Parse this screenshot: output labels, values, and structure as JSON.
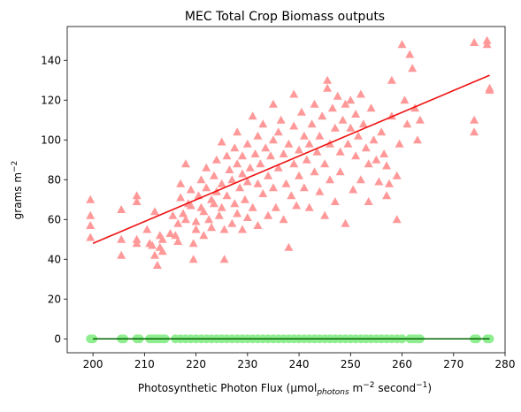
{
  "chart_data": {
    "type": "scatter",
    "title": "MEC Total Crop Biomass outputs",
    "xlabel_parts": {
      "prefix": "Photosynthetic Photon Flux (μmol",
      "sub": "photons",
      "mid": " m",
      "sup1": "−2",
      "mid2": " second",
      "sup2": "−1",
      "suffix": ")"
    },
    "ylabel_parts": {
      "prefix": "grams m",
      "sup": "−2"
    },
    "xlim": [
      195,
      280
    ],
    "ylim": [
      -7,
      157
    ],
    "xticks": [
      200,
      210,
      220,
      230,
      240,
      250,
      260,
      270,
      280
    ],
    "yticks": [
      0,
      20,
      40,
      60,
      80,
      100,
      120,
      140
    ],
    "grid": false,
    "colors": {
      "biomass_points": "#ff9999",
      "zero_points": "#90ee90",
      "biomass_fit": "#ee1111",
      "zero_fit": "#006400"
    },
    "series": [
      {
        "marker": "triangle",
        "points": [
          [
            199.5,
            70
          ],
          [
            199.5,
            62
          ],
          [
            199.5,
            57
          ],
          [
            199.5,
            51
          ],
          [
            205.5,
            65
          ],
          [
            205.5,
            50
          ],
          [
            205.5,
            42
          ],
          [
            208.5,
            72
          ],
          [
            208.5,
            69
          ],
          [
            208.5,
            50
          ],
          [
            208.5,
            48
          ],
          [
            210.5,
            55
          ],
          [
            211,
            48
          ],
          [
            211.5,
            47
          ],
          [
            212,
            64
          ],
          [
            212,
            42
          ],
          [
            212.5,
            37
          ],
          [
            213,
            52
          ],
          [
            213,
            46
          ],
          [
            213.5,
            44
          ],
          [
            213.5,
            50
          ],
          [
            215,
            53
          ],
          [
            215.5,
            62
          ],
          [
            216,
            52
          ],
          [
            216.5,
            58
          ],
          [
            216.5,
            49
          ],
          [
            217,
            71
          ],
          [
            217,
            78
          ],
          [
            217.5,
            63
          ],
          [
            218,
            60
          ],
          [
            218,
            88
          ],
          [
            218.5,
            68
          ],
          [
            219,
            75
          ],
          [
            219,
            67
          ],
          [
            219.5,
            48
          ],
          [
            219.5,
            40
          ],
          [
            220,
            59
          ],
          [
            220,
            55
          ],
          [
            220.5,
            72
          ],
          [
            221,
            66
          ],
          [
            221,
            80
          ],
          [
            221.5,
            64
          ],
          [
            221.5,
            52
          ],
          [
            222,
            86
          ],
          [
            222,
            76
          ],
          [
            222.5,
            60
          ],
          [
            223,
            70
          ],
          [
            223,
            56
          ],
          [
            223.5,
            82
          ],
          [
            223.5,
            68
          ],
          [
            224,
            90
          ],
          [
            224,
            74
          ],
          [
            224.5,
            62
          ],
          [
            225,
            99
          ],
          [
            225,
            78
          ],
          [
            225,
            66
          ],
          [
            225.5,
            40
          ],
          [
            225.5,
            55
          ],
          [
            226,
            92
          ],
          [
            226,
            72
          ],
          [
            226.5,
            85
          ],
          [
            227,
            80
          ],
          [
            227,
            58
          ],
          [
            227.5,
            96
          ],
          [
            227.5,
            68
          ],
          [
            228,
            104
          ],
          [
            228,
            88
          ],
          [
            228,
            63
          ],
          [
            228.5,
            76
          ],
          [
            229,
            83
          ],
          [
            229,
            92
          ],
          [
            229,
            55
          ],
          [
            229.5,
            70
          ],
          [
            230,
            98
          ],
          [
            230,
            79
          ],
          [
            230,
            61
          ],
          [
            230.5,
            86
          ],
          [
            231,
            112
          ],
          [
            231,
            66
          ],
          [
            231.5,
            93
          ],
          [
            232,
            78
          ],
          [
            232,
            102
          ],
          [
            232,
            57
          ],
          [
            232.5,
            88
          ],
          [
            233,
            73
          ],
          [
            233,
            108
          ],
          [
            233.5,
            96
          ],
          [
            234,
            82
          ],
          [
            234,
            62
          ],
          [
            234.5,
            92
          ],
          [
            235,
            76
          ],
          [
            235,
            118
          ],
          [
            235,
            100
          ],
          [
            235.5,
            66
          ],
          [
            236,
            86
          ],
          [
            236,
            104
          ],
          [
            236.5,
            110
          ],
          [
            237,
            93
          ],
          [
            237,
            60
          ],
          [
            237.5,
            78
          ],
          [
            238,
            98
          ],
          [
            238,
            46
          ],
          [
            238.5,
            72
          ],
          [
            239,
            107
          ],
          [
            239,
            88
          ],
          [
            239,
            123
          ],
          [
            239.5,
            67
          ],
          [
            240,
            95
          ],
          [
            240,
            82
          ],
          [
            240.5,
            114
          ],
          [
            241,
            102
          ],
          [
            241,
            76
          ],
          [
            241.5,
            90
          ],
          [
            242,
            98
          ],
          [
            242,
            66
          ],
          [
            242.5,
            108
          ],
          [
            243,
            84
          ],
          [
            243,
            118
          ],
          [
            243.5,
            94
          ],
          [
            244,
            102
          ],
          [
            244,
            74
          ],
          [
            244.5,
            112
          ],
          [
            245,
            88
          ],
          [
            245,
            62
          ],
          [
            245.5,
            130
          ],
          [
            245.5,
            126
          ],
          [
            246,
            98
          ],
          [
            246,
            80
          ],
          [
            246.5,
            116
          ],
          [
            247,
            106
          ],
          [
            247,
            69
          ],
          [
            247.5,
            122
          ],
          [
            248,
            94
          ],
          [
            248,
            84
          ],
          [
            248.5,
            110
          ],
          [
            249,
            118
          ],
          [
            249,
            58
          ],
          [
            249.5,
            98
          ],
          [
            250,
            106
          ],
          [
            250,
            120
          ],
          [
            250.5,
            75
          ],
          [
            251,
            92
          ],
          [
            251,
            113
          ],
          [
            251.5,
            102
          ],
          [
            252,
            80
          ],
          [
            252,
            123
          ],
          [
            252.5,
            108
          ],
          [
            253,
            96
          ],
          [
            253.5,
            69
          ],
          [
            253.5,
            88
          ],
          [
            254,
            116
          ],
          [
            254.5,
            100
          ],
          [
            255,
            90
          ],
          [
            255.5,
            79
          ],
          [
            256,
            104
          ],
          [
            256.5,
            93
          ],
          [
            257,
            87
          ],
          [
            257,
            72
          ],
          [
            257.5,
            78
          ],
          [
            258,
            130
          ],
          [
            258,
            112
          ],
          [
            259,
            60
          ],
          [
            259,
            82
          ],
          [
            259.5,
            98
          ],
          [
            260,
            148
          ],
          [
            260.5,
            120
          ],
          [
            261,
            108
          ],
          [
            261.5,
            143
          ],
          [
            262,
            136
          ],
          [
            262.5,
            116
          ],
          [
            263,
            100
          ],
          [
            263.5,
            110
          ],
          [
            274,
            149
          ],
          [
            274,
            110
          ],
          [
            274,
            104
          ],
          [
            276.5,
            150
          ],
          [
            276.5,
            148
          ],
          [
            277,
            126
          ],
          [
            277,
            125
          ]
        ]
      },
      {
        "marker": "circle",
        "x": [
          199.5,
          200,
          205.5,
          206,
          208.5,
          209,
          211,
          211.5,
          212,
          212.5,
          213,
          213.5,
          214,
          216,
          217,
          218,
          219,
          220,
          221,
          222,
          223,
          224,
          225,
          226,
          227,
          228,
          229,
          230,
          231,
          232,
          233,
          234,
          235,
          236,
          237,
          238,
          239,
          240,
          241,
          242,
          243,
          244,
          245,
          246,
          247,
          248,
          249,
          250,
          251,
          252,
          253,
          254,
          255,
          256,
          257,
          258,
          259,
          260,
          261.5,
          262,
          262.5,
          263,
          263.5,
          274,
          274.5,
          276.5,
          277
        ],
        "y_value": 0
      }
    ],
    "fits": [
      {
        "x": [
          200,
          277
        ],
        "y": [
          48,
          132.5
        ]
      },
      {
        "x": [
          200,
          277
        ],
        "y": [
          0,
          0
        ]
      }
    ]
  }
}
